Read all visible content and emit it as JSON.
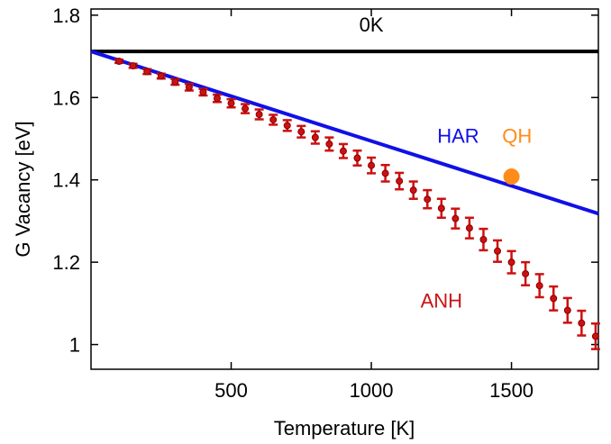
{
  "chart_data": {
    "type": "scatter",
    "title": "",
    "xlabel": "Temperature  [K]",
    "ylabel": "G Vacancy [eV]",
    "xlim": [
      0,
      1810
    ],
    "ylim": [
      0.94,
      1.815
    ],
    "xticks": [
      500,
      1000,
      1500
    ],
    "xtick_labels": [
      "500",
      "1000",
      "1500"
    ],
    "yticks": [
      1.0,
      1.2,
      1.4,
      1.6,
      1.8
    ],
    "ytick_labels": [
      "1",
      "1.2",
      "1.4",
      "1.6",
      "1.8"
    ],
    "grid": false,
    "series": [
      {
        "name": "0K",
        "kind": "line",
        "color": "#000000",
        "x": [
          0,
          1810
        ],
        "y": [
          1.712,
          1.712
        ]
      },
      {
        "name": "HAR",
        "kind": "line",
        "color": "#1010e6",
        "x": [
          0,
          1810
        ],
        "y": [
          1.712,
          1.318
        ]
      },
      {
        "name": "QH",
        "kind": "point",
        "color": "#ff8c1a",
        "x": [
          1500
        ],
        "y": [
          1.408
        ]
      },
      {
        "name": "ANH",
        "kind": "errorbar",
        "color": "#cc1111",
        "x": [
          100,
          150,
          200,
          250,
          300,
          350,
          400,
          450,
          500,
          550,
          600,
          650,
          700,
          750,
          800,
          850,
          900,
          950,
          1000,
          1050,
          1100,
          1150,
          1200,
          1250,
          1300,
          1350,
          1400,
          1450,
          1500,
          1550,
          1600,
          1650,
          1700,
          1750,
          1800
        ],
        "y": [
          1.688,
          1.677,
          1.663,
          1.652,
          1.638,
          1.625,
          1.613,
          1.598,
          1.586,
          1.573,
          1.559,
          1.546,
          1.532,
          1.517,
          1.503,
          1.487,
          1.47,
          1.453,
          1.435,
          1.416,
          1.397,
          1.375,
          1.353,
          1.331,
          1.306,
          1.283,
          1.255,
          1.227,
          1.2,
          1.172,
          1.143,
          1.112,
          1.083,
          1.052,
          1.02
        ],
        "err": [
          0.004,
          0.005,
          0.006,
          0.006,
          0.007,
          0.008,
          0.008,
          0.009,
          0.01,
          0.011,
          0.012,
          0.012,
          0.013,
          0.014,
          0.015,
          0.016,
          0.017,
          0.018,
          0.019,
          0.02,
          0.02,
          0.021,
          0.022,
          0.023,
          0.024,
          0.025,
          0.026,
          0.026,
          0.027,
          0.028,
          0.028,
          0.029,
          0.03,
          0.03,
          0.031
        ]
      }
    ],
    "annotations": [
      {
        "text": "0K",
        "color": "#000000",
        "x": 1000,
        "y": 1.76
      },
      {
        "text": "HAR",
        "color": "#1010e6",
        "x": 1310,
        "y": 1.49
      },
      {
        "text": "QH",
        "color": "#ff8c1a",
        "x": 1520,
        "y": 1.49
      },
      {
        "text": "ANH",
        "color": "#cc1111",
        "x": 1250,
        "y": 1.09
      }
    ]
  }
}
